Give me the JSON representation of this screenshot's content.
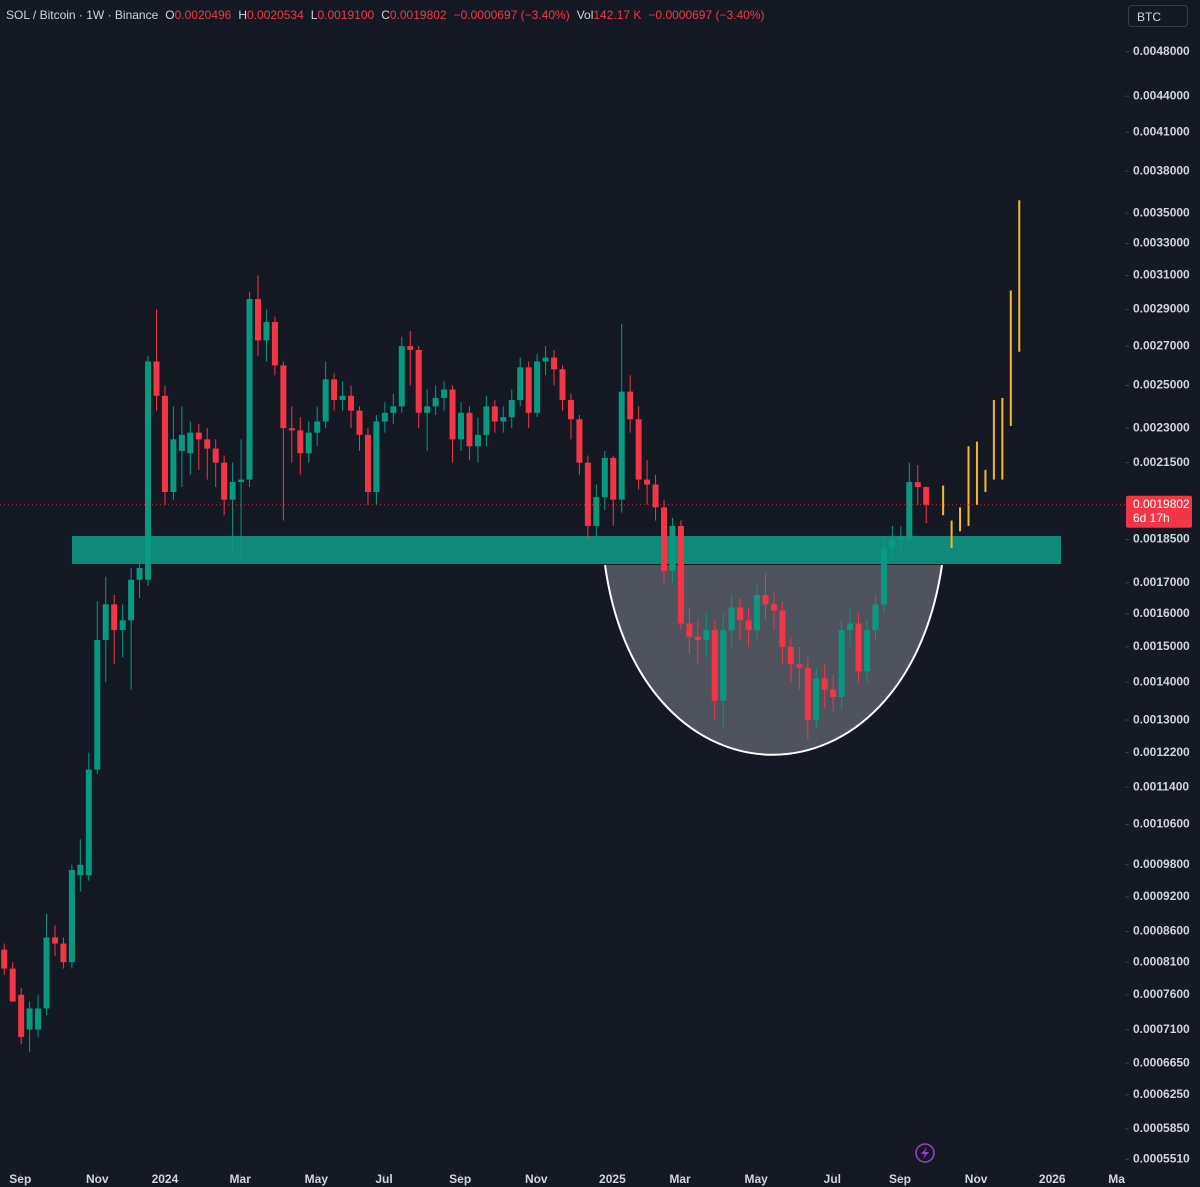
{
  "header": {
    "symbol": "SOL / Bitcoin · 1W · Binance",
    "o_label": "O",
    "open": "0.0020496",
    "h_label": "H",
    "high": "0.0020534",
    "l_label": "L",
    "low": "0.0019100",
    "c_label": "C",
    "close": "0.0019802",
    "change": "−0.0000697 (−3.40%)",
    "vol_label": "Vol",
    "volume": "142.17 K",
    "vol_change": "−0.0000697 (−3.40%)",
    "currency": "BTC"
  },
  "chart_data": {
    "type": "candlestick",
    "log_scale": true,
    "up_color": "#089981",
    "down_color": "#f23645",
    "xlim": [
      -0.5,
      132.5
    ],
    "xticks": [
      {
        "value": 1.9,
        "label": "Sep"
      },
      {
        "value": 11.0,
        "label": "Nov"
      },
      {
        "value": 19.0,
        "label": "2024"
      },
      {
        "value": 27.9,
        "label": "Mar"
      },
      {
        "value": 36.9,
        "label": "May"
      },
      {
        "value": 44.9,
        "label": "Jul"
      },
      {
        "value": 53.9,
        "label": "Sep"
      },
      {
        "value": 62.9,
        "label": "Nov"
      },
      {
        "value": 71.9,
        "label": "2025"
      },
      {
        "value": 79.9,
        "label": "Mar"
      },
      {
        "value": 88.9,
        "label": "May"
      },
      {
        "value": 97.9,
        "label": "Jul"
      },
      {
        "value": 105.9,
        "label": "Sep"
      },
      {
        "value": 114.9,
        "label": "Nov"
      },
      {
        "value": 123.9,
        "label": "2026"
      },
      {
        "value": 131.5,
        "label": "Ma"
      }
    ],
    "ylim": [
      0.000522,
      0.00531
    ],
    "yticks": [
      {
        "value": 0.0048,
        "label": "0.0048000"
      },
      {
        "value": 0.0044,
        "label": "0.0044000"
      },
      {
        "value": 0.0041,
        "label": "0.0041000"
      },
      {
        "value": 0.0038,
        "label": "0.0038000"
      },
      {
        "value": 0.0035,
        "label": "0.0035000"
      },
      {
        "value": 0.0033,
        "label": "0.0033000"
      },
      {
        "value": 0.0031,
        "label": "0.0031000"
      },
      {
        "value": 0.0029,
        "label": "0.0029000"
      },
      {
        "value": 0.0027,
        "label": "0.0027000"
      },
      {
        "value": 0.0025,
        "label": "0.0025000"
      },
      {
        "value": 0.0023,
        "label": "0.0023000"
      },
      {
        "value": 0.00215,
        "label": "0.0021500"
      },
      {
        "value": 0.00185,
        "label": "0.0018500"
      },
      {
        "value": 0.0017,
        "label": "0.0017000"
      },
      {
        "value": 0.0016,
        "label": "0.0016000"
      },
      {
        "value": 0.0015,
        "label": "0.0015000"
      },
      {
        "value": 0.0014,
        "label": "0.0014000"
      },
      {
        "value": 0.0013,
        "label": "0.0013000"
      },
      {
        "value": 0.00122,
        "label": "0.0012200"
      },
      {
        "value": 0.00114,
        "label": "0.0011400"
      },
      {
        "value": 0.00106,
        "label": "0.0010600"
      },
      {
        "value": 0.00098,
        "label": "0.0009800"
      },
      {
        "value": 0.00092,
        "label": "0.0009200"
      },
      {
        "value": 0.00086,
        "label": "0.0008600"
      },
      {
        "value": 0.00081,
        "label": "0.0008100"
      },
      {
        "value": 0.00076,
        "label": "0.0007600"
      },
      {
        "value": 0.00071,
        "label": "0.0007100"
      },
      {
        "value": 0.000665,
        "label": "0.0006650"
      },
      {
        "value": 0.000625,
        "label": "0.0006250"
      },
      {
        "value": 0.000585,
        "label": "0.0005850"
      },
      {
        "value": 0.000551,
        "label": "0.0005510"
      }
    ],
    "open": [
      0.00083,
      0.0008,
      0.00076,
      0.00071,
      0.00071,
      0.00074,
      0.00085,
      0.00084,
      0.00081,
      0.00096,
      0.00096,
      0.00118,
      0.00152,
      0.00163,
      0.00155,
      0.00158,
      0.00171,
      0.00171,
      0.00262,
      0.00245,
      0.00203,
      0.0022,
      0.00219,
      0.00228,
      0.00225,
      0.00221,
      0.00215,
      0.002,
      0.00207,
      0.00208,
      0.00296,
      0.00273,
      0.00283,
      0.0026,
      0.0023,
      0.00229,
      0.00219,
      0.00228,
      0.00233,
      0.00253,
      0.00243,
      0.00245,
      0.00238,
      0.00227,
      0.00203,
      0.00233,
      0.00237,
      0.0024,
      0.0027,
      0.00268,
      0.00237,
      0.0024,
      0.00244,
      0.00248,
      0.00225,
      0.00237,
      0.00222,
      0.00227,
      0.0024,
      0.00233,
      0.00235,
      0.00243,
      0.00259,
      0.00237,
      0.00262,
      0.00264,
      0.00258,
      0.00243,
      0.00234,
      0.00215,
      0.0019,
      0.00201,
      0.00217,
      0.002,
      0.00247,
      0.00234,
      0.00208,
      0.00206,
      0.00197,
      0.00174,
      0.0019,
      0.00157,
      0.00153,
      0.00152,
      0.00155,
      0.00135,
      0.00155,
      0.00162,
      0.00158,
      0.00155,
      0.00166,
      0.00163,
      0.00161,
      0.0015,
      0.00145,
      0.00144,
      0.0013,
      0.00141,
      0.00138,
      0.00136,
      0.00155,
      0.00157,
      0.00143,
      0.00155,
      0.00163,
      0.00182,
      0.00185,
      0.00185,
      0.00207,
      0.0020496
    ],
    "high": [
      0.00084,
      0.00081,
      0.00077,
      0.00075,
      0.00076,
      0.00089,
      0.00087,
      0.00085,
      0.00098,
      0.00103,
      0.00122,
      0.00164,
      0.00172,
      0.00166,
      0.00163,
      0.00175,
      0.00178,
      0.00265,
      0.0029,
      0.0025,
      0.0024,
      0.0024,
      0.00233,
      0.00232,
      0.0023,
      0.00225,
      0.00218,
      0.00215,
      0.00225,
      0.003,
      0.0031,
      0.0029,
      0.00286,
      0.00262,
      0.0024,
      0.00235,
      0.00233,
      0.0024,
      0.00262,
      0.00256,
      0.00252,
      0.0025,
      0.0024,
      0.0023,
      0.00236,
      0.00242,
      0.00246,
      0.00275,
      0.00278,
      0.0027,
      0.00248,
      0.0025,
      0.00252,
      0.0025,
      0.00242,
      0.0024,
      0.00235,
      0.00245,
      0.00243,
      0.0024,
      0.00248,
      0.00264,
      0.00262,
      0.00266,
      0.0027,
      0.00268,
      0.0026,
      0.00246,
      0.00236,
      0.00218,
      0.00206,
      0.0022,
      0.00218,
      0.00282,
      0.00255,
      0.0024,
      0.00216,
      0.0021,
      0.002,
      0.00193,
      0.00192,
      0.00162,
      0.00158,
      0.0016,
      0.00158,
      0.0016,
      0.00166,
      0.00165,
      0.00162,
      0.0017,
      0.00173,
      0.00167,
      0.00164,
      0.00153,
      0.0015,
      0.00147,
      0.00144,
      0.00145,
      0.00142,
      0.00158,
      0.00162,
      0.0016,
      0.00158,
      0.00166,
      0.00186,
      0.0019,
      0.0019,
      0.00215,
      0.00214,
      0.0020534
    ],
    "low": [
      0.00079,
      0.00075,
      0.00069,
      0.00068,
      0.0007,
      0.00073,
      0.00082,
      0.0008,
      0.0008,
      0.00093,
      0.00095,
      0.00117,
      0.0014,
      0.00145,
      0.00147,
      0.00138,
      0.00165,
      0.00169,
      0.00238,
      0.00198,
      0.002,
      0.00205,
      0.0021,
      0.00212,
      0.00208,
      0.00205,
      0.00194,
      0.0018,
      0.00178,
      0.00205,
      0.00265,
      0.00262,
      0.00255,
      0.00192,
      0.00215,
      0.0021,
      0.00215,
      0.00222,
      0.0023,
      0.00238,
      0.00238,
      0.0023,
      0.0022,
      0.00198,
      0.00198,
      0.00228,
      0.00232,
      0.00237,
      0.0025,
      0.0023,
      0.0022,
      0.00236,
      0.00238,
      0.00215,
      0.0022,
      0.00216,
      0.00215,
      0.00222,
      0.00228,
      0.00228,
      0.0023,
      0.0024,
      0.0023,
      0.00235,
      0.00255,
      0.0025,
      0.00238,
      0.00225,
      0.0021,
      0.00185,
      0.00186,
      0.00196,
      0.0019,
      0.00195,
      0.00228,
      0.00204,
      0.00198,
      0.00192,
      0.0017,
      0.0017,
      0.00155,
      0.00148,
      0.00145,
      0.00147,
      0.0013,
      0.00128,
      0.0015,
      0.00152,
      0.0015,
      0.00152,
      0.00158,
      0.00155,
      0.00145,
      0.0014,
      0.00138,
      0.00125,
      0.00128,
      0.00133,
      0.00132,
      0.00133,
      0.0015,
      0.0014,
      0.0014,
      0.00152,
      0.0016,
      0.00178,
      0.0018,
      0.00183,
      0.00198,
      0.00191
    ],
    "close": [
      0.0008,
      0.00075,
      0.0007,
      0.00074,
      0.00074,
      0.00085,
      0.00084,
      0.00081,
      0.00097,
      0.00098,
      0.00118,
      0.00152,
      0.00163,
      0.00155,
      0.00158,
      0.00171,
      0.00175,
      0.00262,
      0.00245,
      0.00203,
      0.00225,
      0.00227,
      0.00228,
      0.00225,
      0.00221,
      0.00215,
      0.002,
      0.00207,
      0.00208,
      0.00296,
      0.00273,
      0.00283,
      0.0026,
      0.0023,
      0.00229,
      0.00219,
      0.00228,
      0.00233,
      0.00253,
      0.00243,
      0.00245,
      0.00238,
      0.00227,
      0.00203,
      0.00233,
      0.00237,
      0.0024,
      0.0027,
      0.00268,
      0.00237,
      0.0024,
      0.00244,
      0.00248,
      0.00225,
      0.00237,
      0.00222,
      0.00227,
      0.0024,
      0.00233,
      0.00235,
      0.00243,
      0.00259,
      0.00237,
      0.00262,
      0.00264,
      0.00258,
      0.00243,
      0.00234,
      0.00215,
      0.0019,
      0.00201,
      0.00217,
      0.002,
      0.00247,
      0.00234,
      0.00208,
      0.00206,
      0.00197,
      0.00174,
      0.0019,
      0.00157,
      0.00153,
      0.00152,
      0.00155,
      0.00135,
      0.00155,
      0.00162,
      0.00158,
      0.00155,
      0.00166,
      0.00163,
      0.00161,
      0.0015,
      0.00145,
      0.00144,
      0.0013,
      0.00141,
      0.00138,
      0.00136,
      0.00155,
      0.00157,
      0.00143,
      0.00155,
      0.00163,
      0.00182,
      0.00185,
      0.00186,
      0.00207,
      0.00205,
      0.0019802
    ],
    "projection": {
      "color": "#f5b82e",
      "x": [
        111,
        112,
        113,
        114,
        115,
        116,
        117,
        118,
        119,
        120
      ],
      "high": [
        0.002056,
        0.00192,
        0.00197,
        0.00222,
        0.00224,
        0.00212,
        0.00243,
        0.00244,
        0.00301,
        0.00359
      ],
      "low": [
        0.00194,
        0.00182,
        0.00188,
        0.0019,
        0.00198,
        0.00203,
        0.00208,
        0.00208,
        0.00231,
        0.00267
      ]
    },
    "last_price": {
      "value": 0.0019802,
      "label": "0.0019802"
    },
    "countdown": "6d 17h"
  }
}
